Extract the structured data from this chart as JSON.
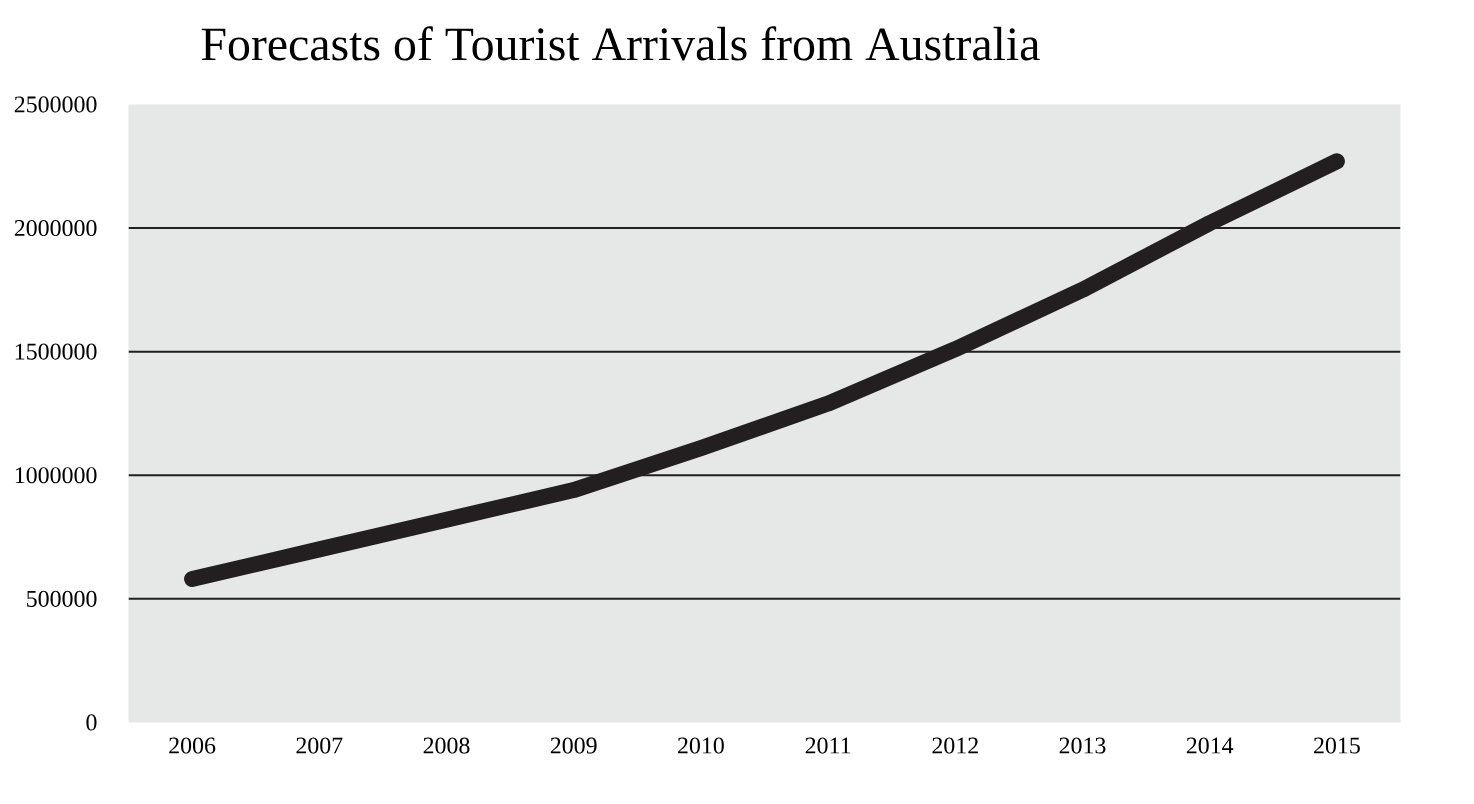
{
  "chart_data": {
    "type": "line",
    "title": "Forecasts of Tourist Arrivals from Australia",
    "categories": [
      "2006",
      "2007",
      "2008",
      "2009",
      "2010",
      "2011",
      "2012",
      "2013",
      "2014",
      "2015"
    ],
    "series": [
      {
        "color": "#231f20",
        "values": [
          580000,
          700000,
          820000,
          940000,
          1110000,
          1290000,
          1510000,
          1750000,
          2020000,
          2270000
        ]
      }
    ],
    "ylim": [
      0,
      2500000
    ],
    "yticks": [
      0,
      500000,
      1000000,
      1500000,
      2000000,
      2500000
    ],
    "grid": "y",
    "marker": "none",
    "line_style": "solid"
  }
}
